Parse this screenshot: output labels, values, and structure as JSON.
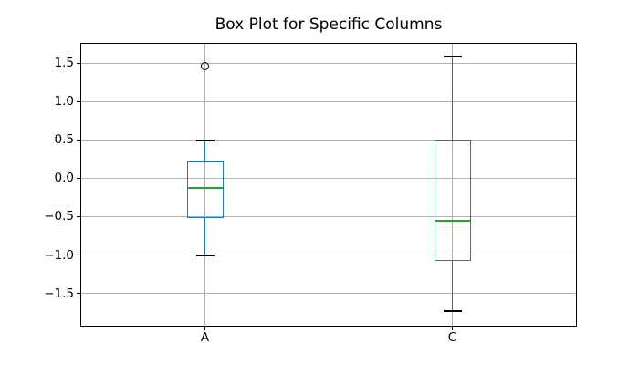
{
  "chart_data": {
    "type": "boxplot",
    "title": "Box Plot for Specific Columns",
    "xlabel": "",
    "ylabel": "",
    "grid": true,
    "categories": [
      "A",
      "C"
    ],
    "positions": [
      1,
      2
    ],
    "xlim": [
      0.5,
      2.5
    ],
    "ylim": [
      -1.92,
      1.75
    ],
    "yticks": [
      {
        "value": 1.5,
        "label": "1.5"
      },
      {
        "value": 1.0,
        "label": "1.0"
      },
      {
        "value": 0.5,
        "label": "0.5"
      },
      {
        "value": 0.0,
        "label": "0.0"
      },
      {
        "value": -0.5,
        "label": "−0.5"
      },
      {
        "value": -1.0,
        "label": "−1.0"
      },
      {
        "value": -1.5,
        "label": "−1.5"
      }
    ],
    "series": [
      {
        "label": "A",
        "position": 1,
        "whisker_low": -1.01,
        "q1": -0.52,
        "median": -0.13,
        "q3": 0.23,
        "whisker_high": 0.49,
        "outliers": [
          1.46
        ]
      },
      {
        "label": "C",
        "position": 2,
        "whisker_low": -1.73,
        "q1": -1.08,
        "median": -0.55,
        "q3": 0.5,
        "whisker_high": 1.58,
        "outliers": []
      }
    ],
    "colors": {
      "box": "#1f77b4",
      "whisker": "#1f77b4",
      "median": "#2ca02c",
      "cap": "#000000",
      "flier_edge": "#000000",
      "grid": "#b0b0b0",
      "spine": "#000000",
      "text": "#000000"
    }
  }
}
